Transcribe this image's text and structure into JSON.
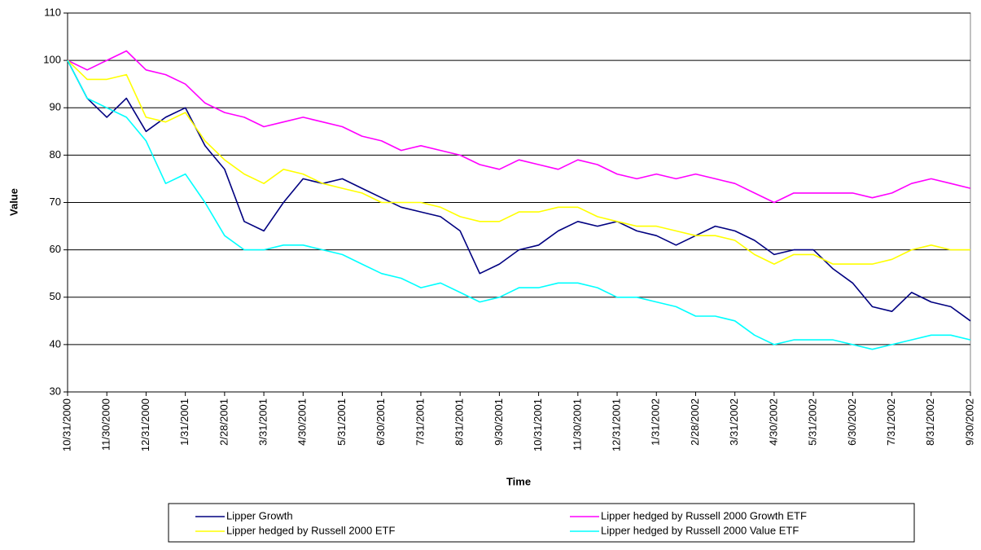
{
  "chart_data": {
    "type": "line",
    "x_label": "Time",
    "y_label": "Value",
    "categories": [
      "10/31/2000",
      null,
      "11/30/2000",
      null,
      "12/31/2000",
      null,
      "1/31/2001",
      null,
      "2/28/2001",
      null,
      "3/31/2001",
      null,
      "4/30/2001",
      null,
      "5/31/2001",
      null,
      "6/30/2001",
      null,
      "7/31/2001",
      null,
      "8/31/2001",
      null,
      "9/30/2001",
      null,
      "10/31/2001",
      null,
      "11/30/2001",
      null,
      "12/31/2001",
      null,
      "1/31/2002",
      null,
      "2/28/2002",
      null,
      "3/31/2002",
      null,
      "4/30/2002",
      null,
      "5/31/2002",
      null,
      "6/30/2002",
      null,
      "7/31/2002",
      null,
      "8/31/2002",
      null,
      "9/30/2002"
    ],
    "series": [
      {
        "name": "Lipper Growth",
        "color": "#000080",
        "values": [
          100,
          92,
          88,
          92,
          85,
          88,
          90,
          82,
          77,
          66,
          64,
          70,
          75,
          74,
          75,
          73,
          71,
          69,
          68,
          67,
          64,
          55,
          57,
          60,
          61,
          64,
          66,
          65,
          66,
          64,
          63,
          61,
          63,
          65,
          64,
          62,
          59,
          60,
          60,
          56,
          53,
          48,
          47,
          51,
          49,
          48,
          45
        ]
      },
      {
        "name": "Lipper hedged by Russell 2000 Growth ETF",
        "color": "#ff00ff",
        "values": [
          100,
          98,
          100,
          102,
          98,
          97,
          95,
          91,
          89,
          88,
          86,
          87,
          88,
          87,
          86,
          84,
          83,
          81,
          82,
          81,
          80,
          78,
          77,
          79,
          78,
          77,
          79,
          78,
          76,
          75,
          76,
          75,
          76,
          75,
          74,
          72,
          70,
          72,
          72,
          72,
          72,
          71,
          72,
          74,
          75,
          74,
          73
        ]
      },
      {
        "name": "Lipper hedged by Russell 2000 ETF",
        "color": "#ffff00",
        "values": [
          100,
          96,
          96,
          97,
          88,
          87,
          89,
          83,
          79,
          76,
          74,
          77,
          76,
          74,
          73,
          72,
          70,
          70,
          70,
          69,
          67,
          66,
          66,
          68,
          68,
          69,
          69,
          67,
          66,
          65,
          65,
          64,
          63,
          63,
          62,
          59,
          57,
          59,
          59,
          57,
          57,
          57,
          58,
          60,
          61,
          60,
          60
        ]
      },
      {
        "name": "Lipper hedged by Russell 2000 Value ETF",
        "color": "#00ffff",
        "values": [
          100,
          92,
          90,
          88,
          83,
          74,
          76,
          70,
          63,
          60,
          60,
          61,
          61,
          60,
          59,
          57,
          55,
          54,
          52,
          53,
          51,
          49,
          50,
          52,
          52,
          53,
          53,
          52,
          50,
          50,
          49,
          48,
          46,
          46,
          45,
          42,
          40,
          41,
          41,
          41,
          40,
          39,
          40,
          41,
          42,
          42,
          41
        ]
      }
    ],
    "ylim": [
      30,
      110
    ],
    "yticks": [
      30,
      40,
      50,
      60,
      70,
      80,
      90,
      100,
      110
    ],
    "grid": true
  }
}
